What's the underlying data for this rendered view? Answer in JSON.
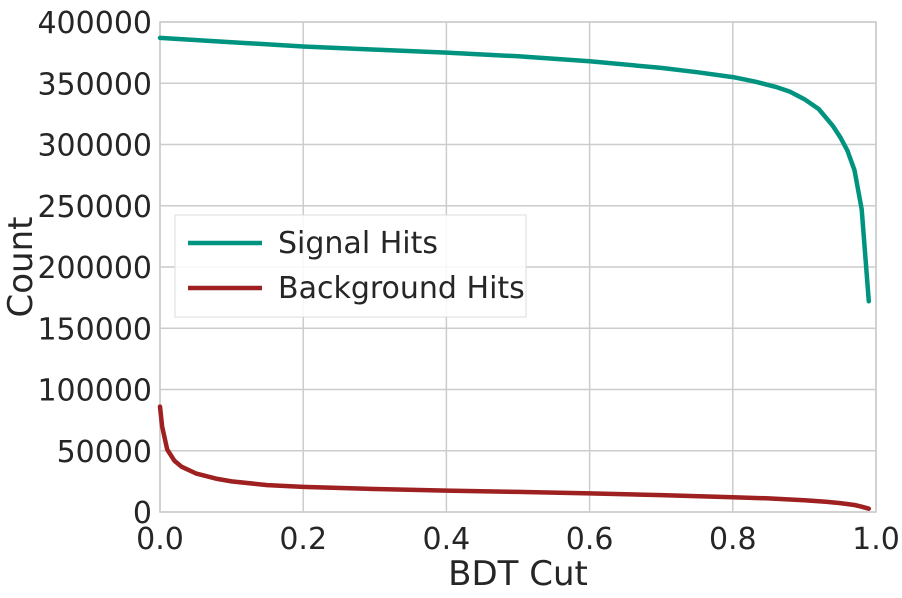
{
  "chart_data": {
    "type": "line",
    "xlabel": "BDT Cut",
    "ylabel": "Count",
    "xlim": [
      0.0,
      1.0
    ],
    "ylim": [
      0,
      400000
    ],
    "xticks": [
      0.0,
      0.2,
      0.4,
      0.6,
      0.8,
      1.0
    ],
    "xtick_labels": [
      "0.0",
      "0.2",
      "0.4",
      "0.6",
      "0.8",
      "1.0"
    ],
    "yticks": [
      0,
      50000,
      100000,
      150000,
      200000,
      250000,
      300000,
      350000,
      400000
    ],
    "ytick_labels": [
      "0",
      "50000",
      "100000",
      "150000",
      "200000",
      "250000",
      "300000",
      "350000",
      "400000"
    ],
    "grid": true,
    "legend_position": "center-left",
    "series": [
      {
        "name": "Signal Hits",
        "color": "#009480",
        "x": [
          0.0,
          0.1,
          0.2,
          0.3,
          0.4,
          0.5,
          0.6,
          0.7,
          0.75,
          0.8,
          0.83,
          0.86,
          0.88,
          0.9,
          0.92,
          0.94,
          0.95,
          0.96,
          0.97,
          0.98,
          0.99
        ],
        "y": [
          387000,
          383500,
          380000,
          377500,
          375000,
          372000,
          368000,
          362500,
          359000,
          355000,
          351500,
          347000,
          343000,
          337000,
          329000,
          315000,
          306000,
          295000,
          279000,
          247000,
          172000
        ]
      },
      {
        "name": "Background Hits",
        "color": "#9e2020",
        "x": [
          0.0,
          0.003,
          0.01,
          0.02,
          0.03,
          0.05,
          0.08,
          0.1,
          0.15,
          0.2,
          0.3,
          0.4,
          0.5,
          0.6,
          0.7,
          0.8,
          0.85,
          0.9,
          0.93,
          0.95,
          0.97,
          0.98,
          0.99
        ],
        "y": [
          86000,
          70000,
          51000,
          42000,
          37000,
          31500,
          27000,
          25000,
          22000,
          20500,
          18800,
          17500,
          16400,
          15200,
          13800,
          12100,
          11100,
          9600,
          8300,
          7300,
          5700,
          4300,
          2700
        ]
      }
    ]
  }
}
